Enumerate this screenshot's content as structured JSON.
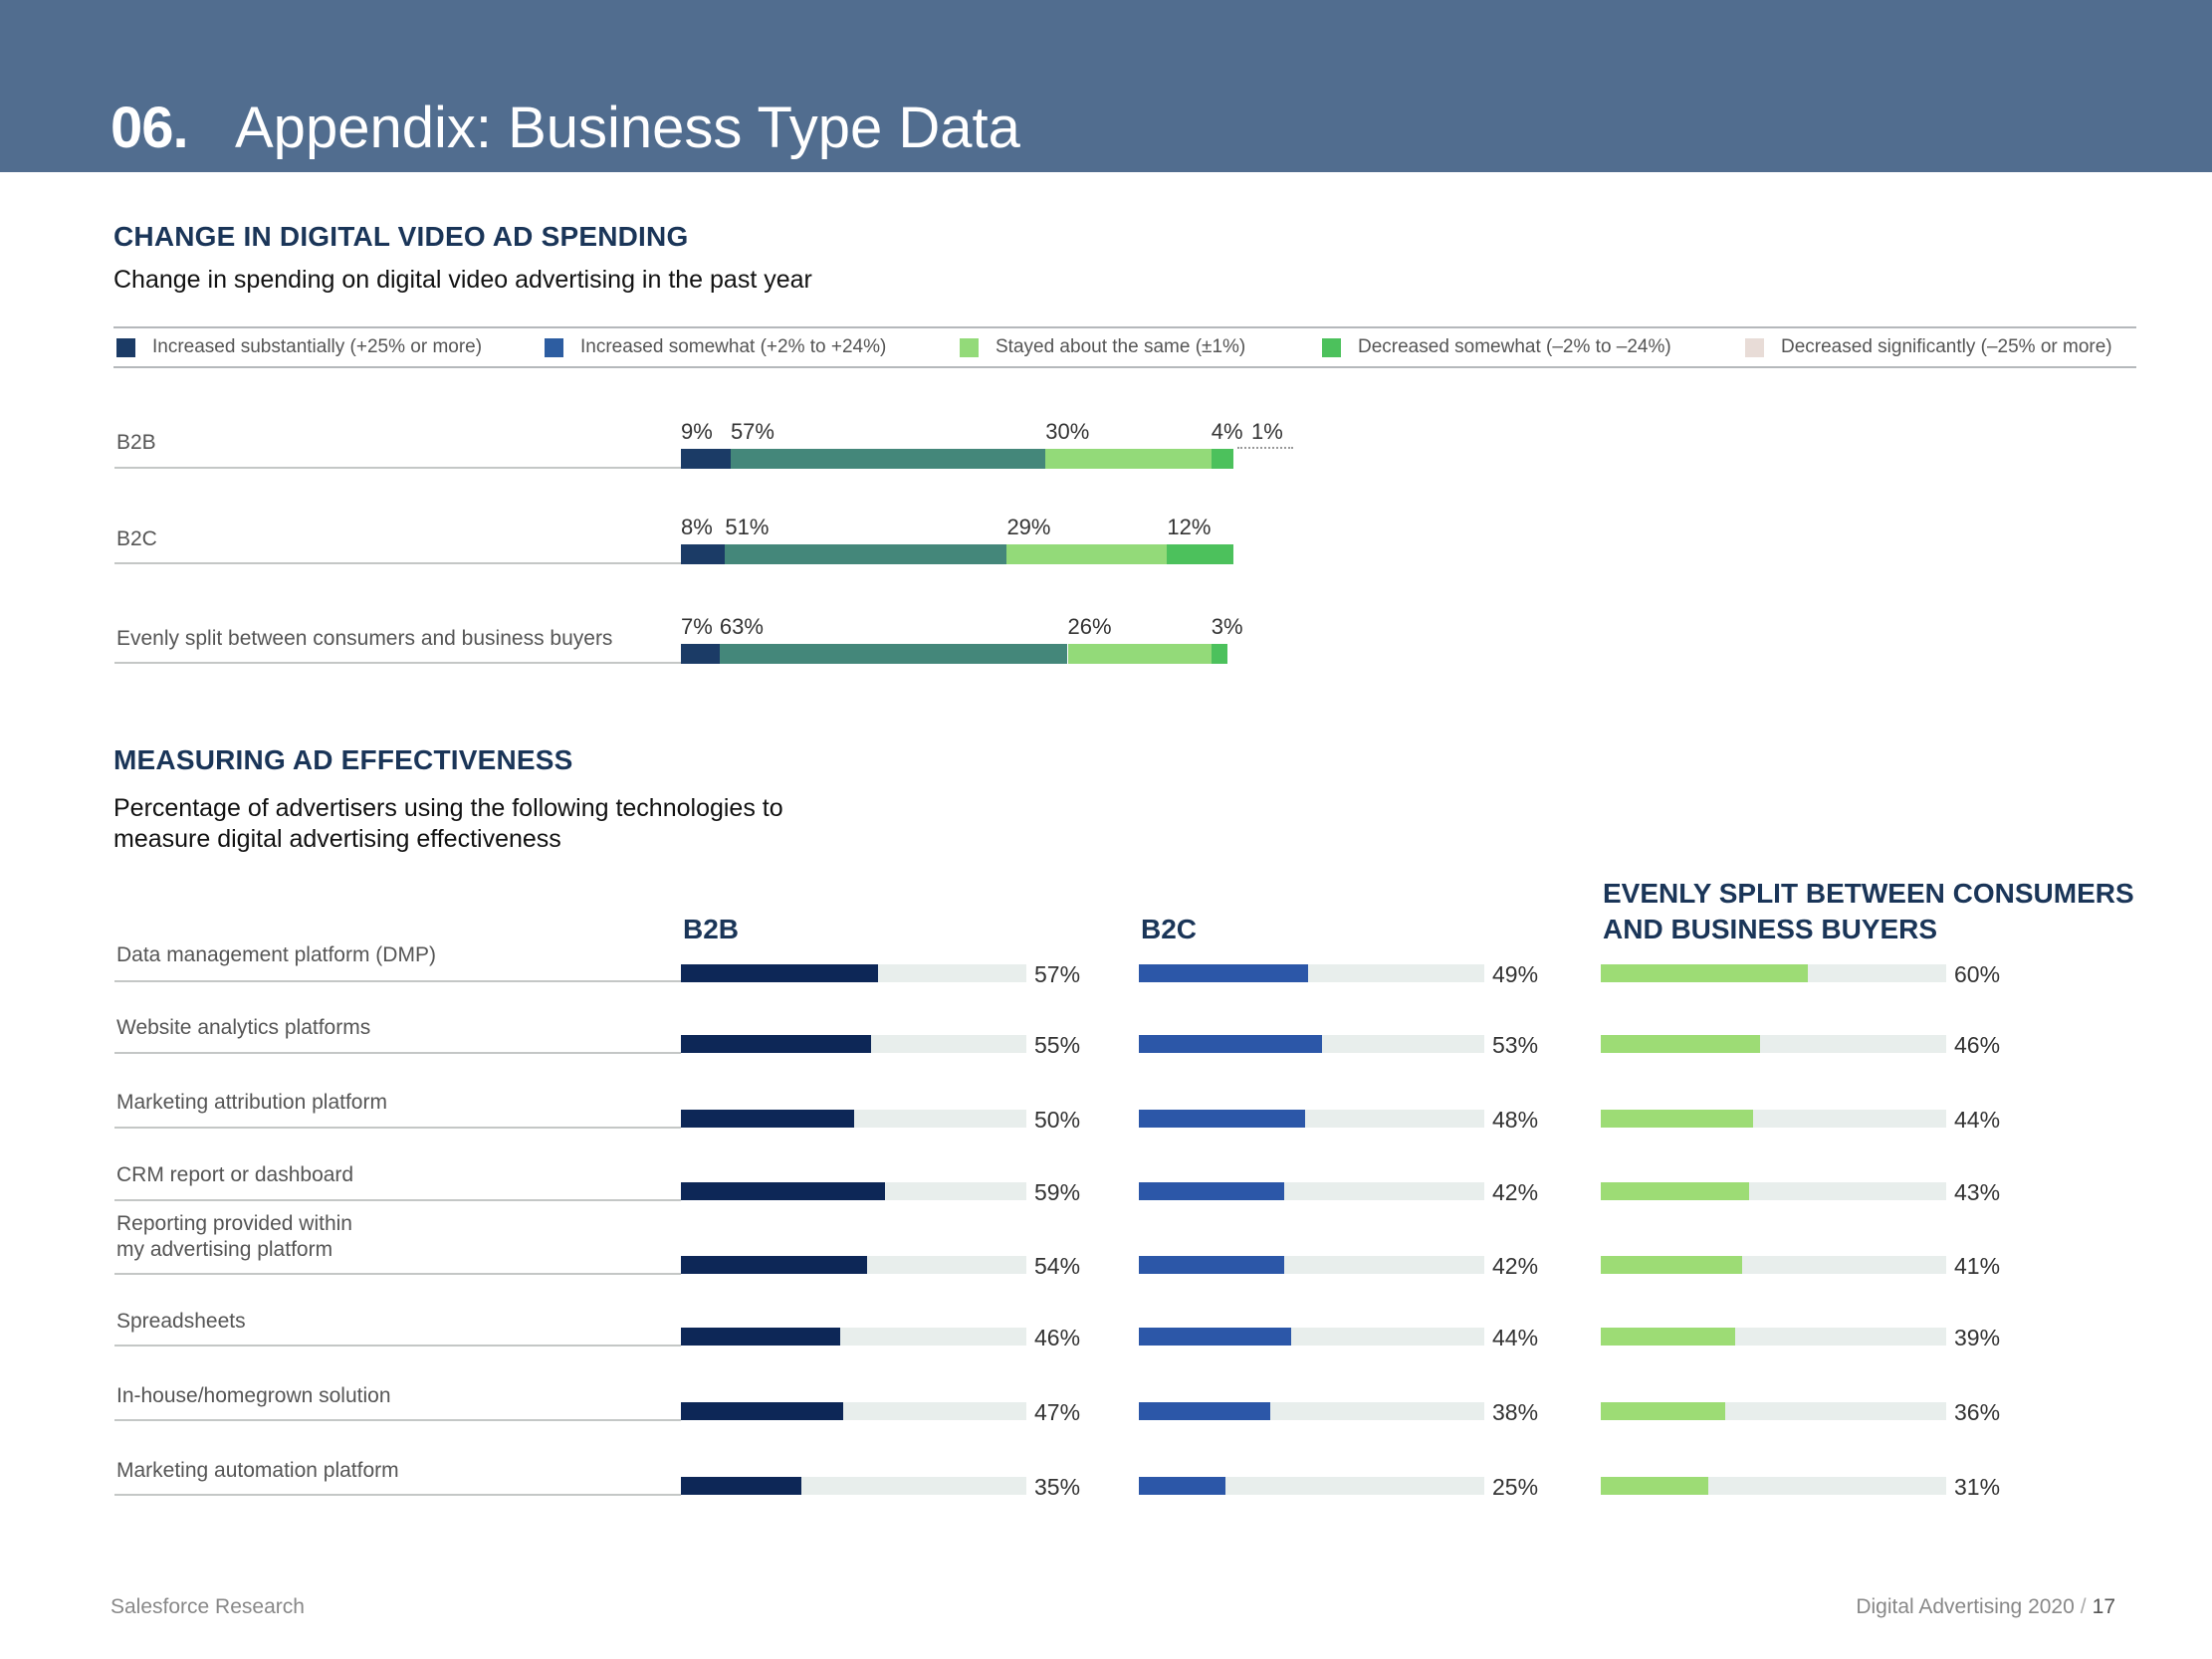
{
  "header": {
    "number": "06.",
    "title": "Appendix: Business Type Data"
  },
  "section1": {
    "title": "CHANGE IN DIGITAL VIDEO AD SPENDING",
    "subtitle": "Change in spending on digital video advertising in the past year"
  },
  "section2": {
    "title": "MEASURING AD EFFECTIVENESS",
    "subtitle_line1": "Percentage of advertisers using the following technologies to",
    "subtitle_line2": "measure digital advertising effectiveness"
  },
  "footer": {
    "source": "Salesforce Research",
    "publication": "Digital Advertising 2020",
    "page": "17"
  },
  "chart_data": [
    {
      "type": "bar",
      "orientation": "horizontal",
      "stacked": true,
      "title": "CHANGE IN DIGITAL VIDEO AD SPENDING",
      "subtitle": "Change in spending on digital video advertising in the past year",
      "legend": [
        {
          "label": "Increased substantially (+25% or more)",
          "color": "#1b3b66"
        },
        {
          "label": "Increased somewhat (+2% to +24%)",
          "color": "#2d5da1"
        },
        {
          "label": "Stayed about the same (±1%)",
          "color": "#93da79"
        },
        {
          "label": "Decreased somewhat (–2% to –24%)",
          "color": "#4cc15c"
        },
        {
          "label": "Decreased significantly (–25% or more)",
          "color": "#e8dcd7"
        }
      ],
      "categories": [
        "B2B",
        "B2C",
        "Evenly split between consumers and business buyers"
      ],
      "series": [
        {
          "name": "Increased substantially (+25% or more)",
          "color": "#1b3b66",
          "values": [
            9,
            8,
            7
          ]
        },
        {
          "name": "Increased somewhat (+2% to +24%)",
          "color": "#44877a",
          "values": [
            57,
            51,
            63
          ]
        },
        {
          "name": "Stayed about the same (±1%)",
          "color": "#93da79",
          "values": [
            30,
            29,
            26
          ]
        },
        {
          "name": "Decreased somewhat (–2% to –24%)",
          "color": "#4cc15c",
          "values": [
            4,
            12,
            3
          ]
        },
        {
          "name": "Decreased significantly (–25% or more)",
          "color": "#e8dcd7",
          "values": [
            1,
            0,
            0
          ]
        }
      ],
      "value_labels": [
        [
          "9%",
          "57%",
          "30%",
          "4%",
          "1%"
        ],
        [
          "8%",
          "51%",
          "29%",
          "12%",
          ""
        ],
        [
          "7%",
          "63%",
          "26%",
          "3%",
          ""
        ]
      ],
      "xlim": [
        0,
        100
      ]
    },
    {
      "type": "bar",
      "orientation": "horizontal",
      "title": "MEASURING AD EFFECTIVENESS",
      "subtitle": "Percentage of advertisers using the following technologies to measure digital advertising effectiveness",
      "categories": [
        "Data management platform (DMP)",
        "Website analytics platforms",
        "Marketing attribution platform",
        "CRM report or dashboard",
        "Reporting provided within my advertising platform",
        "Spreadsheets",
        "In-house/homegrown solution",
        "Marketing automation platform"
      ],
      "category_lines": [
        [
          "Data management platform (DMP)"
        ],
        [
          "Website analytics platforms"
        ],
        [
          "Marketing attribution platform"
        ],
        [
          "CRM report or dashboard"
        ],
        [
          "Reporting provided within",
          "my advertising platform"
        ],
        [
          "Spreadsheets"
        ],
        [
          "In-house/homegrown solution"
        ],
        [
          "Marketing automation platform"
        ]
      ],
      "series": [
        {
          "name": "B2B",
          "color": "#0d2757",
          "values": [
            57,
            55,
            50,
            59,
            54,
            46,
            47,
            35
          ]
        },
        {
          "name": "B2C",
          "color": "#2c57a8",
          "values": [
            49,
            53,
            48,
            42,
            42,
            44,
            38,
            25
          ]
        },
        {
          "name": "EVENLY SPLIT BETWEEN CONSUMERS AND BUSINESS BUYERS",
          "name_lines": [
            "EVENLY SPLIT BETWEEN CONSUMERS",
            "AND BUSINESS BUYERS"
          ],
          "color": "#9ddc75",
          "values": [
            60,
            46,
            44,
            43,
            41,
            39,
            36,
            31
          ]
        }
      ],
      "xlim": [
        0,
        100
      ]
    }
  ]
}
